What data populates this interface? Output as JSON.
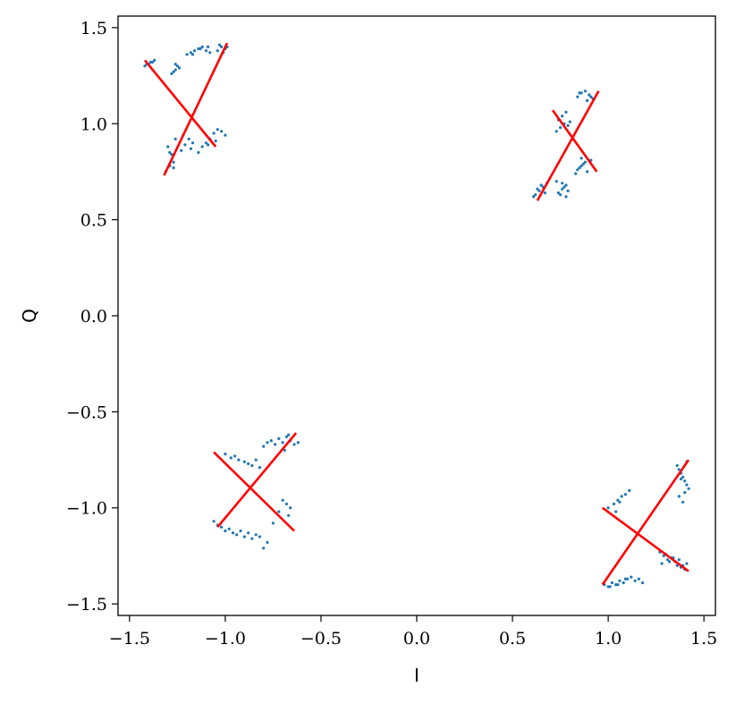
{
  "chart_data": {
    "type": "scatter",
    "title": "",
    "xlabel": "I",
    "ylabel": "Q",
    "xlim": [
      -1.56,
      1.56
    ],
    "ylim": [
      -1.56,
      1.56
    ],
    "grid": false,
    "xticks": [
      -1.5,
      -1.0,
      -0.5,
      0.0,
      0.5,
      1.0,
      1.5
    ],
    "yticks": [
      -1.5,
      -1.0,
      -0.5,
      0.0,
      0.5,
      1.0,
      1.5
    ],
    "xtick_labels": [
      "−1.5",
      "−1.0",
      "−0.5",
      "0.0",
      "0.5",
      "1.0",
      "1.5"
    ],
    "ytick_labels": [
      "−1.5",
      "−1.0",
      "−0.5",
      "0.0",
      "0.5",
      "1.0",
      "1.5"
    ],
    "colors": {
      "points": "#1f77b4",
      "lines": "#ff0000"
    },
    "series": [
      {
        "kind": "points",
        "x": [
          -1.41,
          -1.39,
          -1.42,
          -1.37,
          -1.4,
          -1.38,
          -1.26,
          -1.25,
          -1.27,
          -1.24,
          -1.26,
          -1.28,
          -1.2,
          -1.18,
          -1.16,
          -1.14,
          -1.12,
          -1.1,
          -1.08,
          -1.17,
          -1.13,
          -1.09,
          -1.04,
          -1.02,
          -1.0,
          -1.03,
          -1.01,
          -0.99,
          -1.31,
          -1.29,
          -1.27,
          -1.28,
          -1.3,
          -1.26,
          -1.29,
          -1.27,
          -1.23,
          -1.21,
          -1.19,
          -1.17,
          -1.22,
          -1.18,
          -1.14,
          -1.12,
          -1.1,
          -1.08,
          -1.06,
          -1.04,
          -1.02,
          -1.0,
          -1.09,
          -1.05,
          0.62,
          0.64,
          0.66,
          0.63,
          0.65,
          0.67,
          0.68,
          0.61,
          0.74,
          0.76,
          0.78,
          0.73,
          0.75,
          0.77,
          0.79,
          0.76,
          0.78,
          0.84,
          0.86,
          0.88,
          0.85,
          0.87,
          0.89,
          0.91,
          0.83,
          0.86,
          0.73,
          0.75,
          0.77,
          0.74,
          0.76,
          0.78,
          0.8,
          0.79,
          0.84,
          0.86,
          0.88,
          0.9,
          0.92,
          0.85,
          0.89,
          0.91,
          -1.06,
          -1.04,
          -1.02,
          -1.0,
          -0.98,
          -0.96,
          -0.94,
          -0.92,
          -0.9,
          -0.88,
          -0.86,
          -0.84,
          -0.82,
          -1.0,
          -0.97,
          -0.95,
          -0.93,
          -0.9,
          -0.88,
          -0.86,
          -0.84,
          -0.82,
          -0.8,
          -0.78,
          -0.76,
          -0.74,
          -0.72,
          -0.7,
          -0.68,
          -0.66,
          -0.64,
          -0.62,
          -0.69,
          -0.67,
          -0.7,
          -0.68,
          -0.66,
          -0.72,
          -0.67,
          -0.8,
          -0.78,
          -0.75,
          0.98,
          1.0,
          1.02,
          1.04,
          1.06,
          1.08,
          1.1,
          1.12,
          1.14,
          1.16,
          1.18,
          1.01,
          1.05,
          1.09,
          1.0,
          1.03,
          1.05,
          1.07,
          1.09,
          1.11,
          1.06,
          1.04,
          1.27,
          1.29,
          1.31,
          1.33,
          1.35,
          1.37,
          1.39,
          1.41,
          1.3,
          1.34,
          1.38,
          1.28,
          1.32,
          1.36,
          1.4,
          1.36,
          1.37,
          1.38,
          1.39,
          1.4,
          1.41,
          1.42,
          1.38,
          1.4,
          1.37,
          1.41,
          1.39
        ],
        "y": [
          1.31,
          1.32,
          1.3,
          1.33,
          1.31,
          1.32,
          1.28,
          1.3,
          1.27,
          1.29,
          1.31,
          1.26,
          1.36,
          1.37,
          1.38,
          1.39,
          1.4,
          1.38,
          1.37,
          1.36,
          1.39,
          1.4,
          1.38,
          1.4,
          1.39,
          1.41,
          1.37,
          1.4,
          0.75,
          0.78,
          0.8,
          0.84,
          0.88,
          0.92,
          0.85,
          0.77,
          0.86,
          0.89,
          0.92,
          0.9,
          0.94,
          0.87,
          0.85,
          0.88,
          0.9,
          0.92,
          0.95,
          0.97,
          0.96,
          0.94,
          0.89,
          0.91,
          0.63,
          0.65,
          0.67,
          0.66,
          0.68,
          0.64,
          0.69,
          0.62,
          0.64,
          0.66,
          0.68,
          0.7,
          0.63,
          0.67,
          0.65,
          0.69,
          0.62,
          0.76,
          0.78,
          0.8,
          0.77,
          0.79,
          0.75,
          0.81,
          0.74,
          0.82,
          0.96,
          0.98,
          1.0,
          1.02,
          1.04,
          1.06,
          1.01,
          0.99,
          1.14,
          1.16,
          1.17,
          1.15,
          1.13,
          1.16,
          1.12,
          1.14,
          -1.07,
          -1.09,
          -1.1,
          -1.12,
          -1.11,
          -1.13,
          -1.14,
          -1.12,
          -1.15,
          -1.13,
          -1.16,
          -1.14,
          -1.15,
          -0.72,
          -0.74,
          -0.73,
          -0.75,
          -0.76,
          -0.77,
          -0.78,
          -0.75,
          -0.79,
          -0.68,
          -0.66,
          -0.65,
          -0.67,
          -0.64,
          -0.66,
          -0.63,
          -0.65,
          -0.67,
          -0.66,
          -0.7,
          -0.62,
          -0.96,
          -0.98,
          -1.0,
          -1.02,
          -1.04,
          -1.21,
          -1.18,
          -1.08,
          -1.4,
          -1.41,
          -1.39,
          -1.4,
          -1.38,
          -1.39,
          -1.37,
          -1.36,
          -1.38,
          -1.37,
          -1.39,
          -1.41,
          -1.4,
          -1.37,
          -1.0,
          -0.98,
          -0.96,
          -0.94,
          -0.93,
          -0.91,
          -0.97,
          -1.02,
          -1.23,
          -1.25,
          -1.27,
          -1.26,
          -1.28,
          -1.27,
          -1.3,
          -1.29,
          -1.24,
          -1.26,
          -1.31,
          -1.29,
          -1.28,
          -1.3,
          -1.32,
          -0.78,
          -0.8,
          -0.82,
          -0.84,
          -0.86,
          -0.88,
          -0.9,
          -0.85,
          -0.92,
          -0.94,
          -0.76,
          -0.97
        ]
      }
    ],
    "lines": [
      {
        "x": [
          -1.42,
          -1.05
        ],
        "y": [
          1.33,
          0.88
        ]
      },
      {
        "x": [
          -1.32,
          -0.99
        ],
        "y": [
          0.73,
          1.42
        ]
      },
      {
        "x": [
          0.71,
          0.94
        ],
        "y": [
          1.07,
          0.75
        ]
      },
      {
        "x": [
          0.63,
          0.95
        ],
        "y": [
          0.6,
          1.17
        ]
      },
      {
        "x": [
          -1.06,
          -0.64
        ],
        "y": [
          -0.71,
          -1.12
        ]
      },
      {
        "x": [
          -1.04,
          -0.63
        ],
        "y": [
          -1.1,
          -0.61
        ]
      },
      {
        "x": [
          0.97,
          1.42
        ],
        "y": [
          -1.0,
          -1.33
        ]
      },
      {
        "x": [
          0.97,
          1.42
        ],
        "y": [
          -1.4,
          -0.75
        ]
      }
    ]
  }
}
